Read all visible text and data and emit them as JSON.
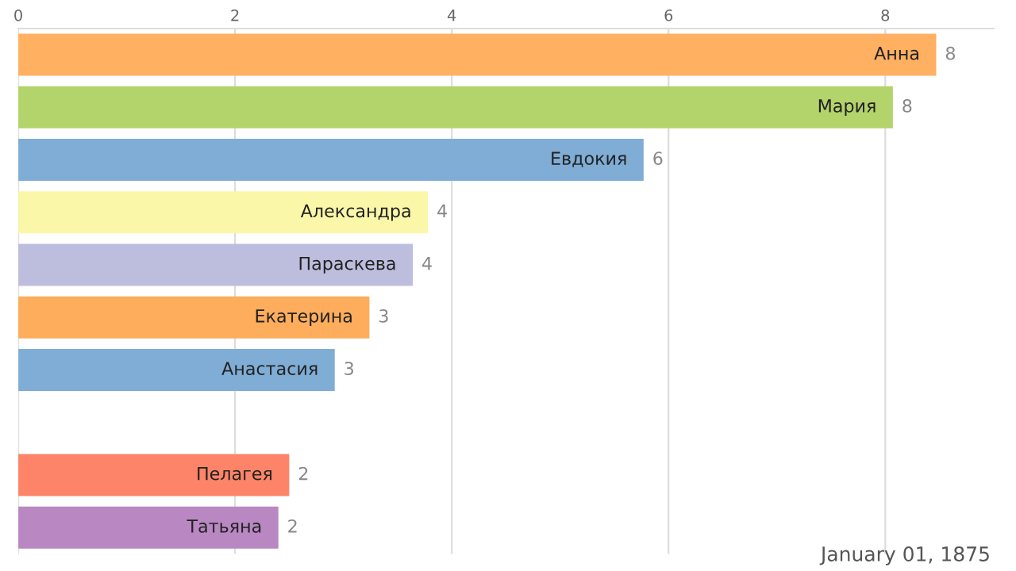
{
  "chart_data": {
    "type": "bar",
    "orientation": "horizontal",
    "categories": [
      "Анна",
      "Мария",
      "Евдокия",
      "Александра",
      "Параскева",
      "Екатерина",
      "Анастасия",
      null,
      "Пелагея",
      "Татьяна"
    ],
    "values": [
      8.47,
      8.07,
      5.77,
      3.78,
      3.64,
      3.24,
      2.92,
      null,
      2.5,
      2.4
    ],
    "value_labels": [
      "8",
      "8",
      "6",
      "4",
      "4",
      "3",
      "3",
      null,
      "2",
      "2"
    ],
    "colors": [
      "#ffb061",
      "#b3d36b",
      "#7fadd6",
      "#fbf7a9",
      "#bdbddd",
      "#fdad5c",
      "#7fadd6",
      "#cccccc",
      "#fd8468",
      "#b987c2"
    ],
    "xlim": [
      0,
      9
    ],
    "xticks": [
      0,
      2,
      4,
      6,
      8
    ],
    "grid": "x",
    "annotations": [
      "January 01, 1875"
    ]
  }
}
